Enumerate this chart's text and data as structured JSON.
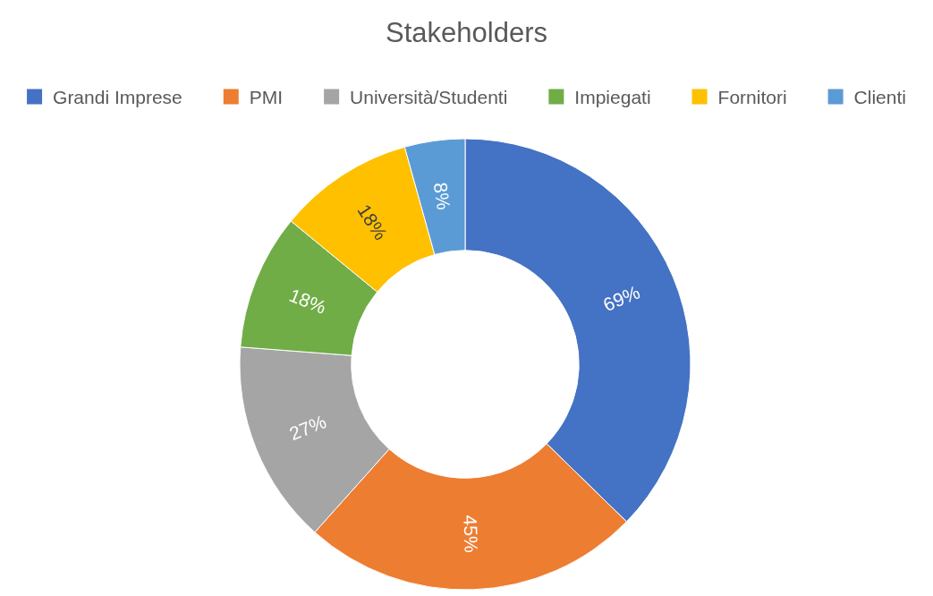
{
  "chart_data": {
    "type": "donut",
    "title": "Stakeholders",
    "categories": [
      "Grandi Imprese",
      "PMI",
      "Università/Studenti",
      "Impiegati",
      "Fornitori",
      "Clienti"
    ],
    "values": [
      69,
      45,
      27,
      18,
      18,
      8
    ],
    "colors": [
      "#4472c4",
      "#ed7d31",
      "#a5a5a5",
      "#70ad47",
      "#ffc000",
      "#5b9bd5"
    ],
    "value_labels": [
      "69%",
      "45%",
      "27%",
      "18%",
      "18%",
      "8%"
    ],
    "legend": "top"
  }
}
